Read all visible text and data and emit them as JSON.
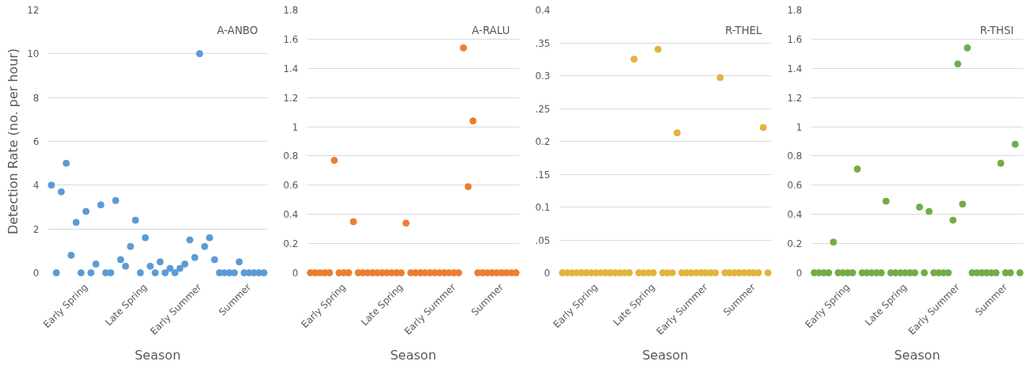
{
  "chart_data": [
    {
      "type": "scatter",
      "xlabel": "Season",
      "ylabel": "Detection Rate (no. per hour)",
      "annotations": [
        "A-ANBO"
      ],
      "marker": "circle",
      "grid": "y",
      "categories": [
        null,
        null,
        null,
        null,
        null,
        null,
        null,
        "Early Spring",
        null,
        null,
        null,
        null,
        null,
        null,
        null,
        null,
        null,
        null,
        null,
        "Late Spring",
        null,
        null,
        null,
        null,
        null,
        null,
        null,
        null,
        null,
        null,
        "Early Summer",
        null,
        null,
        null,
        null,
        null,
        null,
        null,
        null,
        null,
        "Summer",
        null,
        null,
        null
      ],
      "series": [
        {
          "color": "#5b9bd5",
          "values": [
            4.0,
            0,
            3.7,
            5.0,
            0.8,
            2.3,
            0,
            2.8,
            0,
            0.4,
            3.1,
            0,
            0,
            3.3,
            0.6,
            0.3,
            1.2,
            2.4,
            0,
            1.6,
            0.3,
            0,
            0.5,
            0,
            0.2,
            0,
            0.2,
            0.4,
            1.5,
            0.7,
            10,
            1.2,
            1.6,
            0.6,
            0,
            0,
            0,
            0,
            0.5,
            0,
            0,
            0,
            0,
            0
          ]
        }
      ],
      "ylim": [
        0,
        12
      ],
      "yticks": [
        0,
        2,
        4,
        6,
        8,
        10,
        12
      ]
    },
    {
      "type": "scatter",
      "xlabel": "Season",
      "annotations": [
        "A-RALU"
      ],
      "marker": "circle",
      "grid": "y",
      "categories": [
        null,
        null,
        null,
        null,
        null,
        null,
        null,
        "Early Spring",
        null,
        null,
        null,
        null,
        null,
        null,
        null,
        null,
        null,
        null,
        null,
        "Late Spring",
        null,
        null,
        null,
        null,
        null,
        null,
        null,
        null,
        null,
        null,
        "Early Summer",
        null,
        null,
        null,
        null,
        null,
        null,
        null,
        null,
        null,
        "Summer",
        null,
        null,
        null
      ],
      "series": [
        {
          "color": "#ed7d31",
          "values": [
            0,
            0,
            0,
            0,
            0,
            0.77,
            0,
            0,
            0,
            0.35,
            0,
            0,
            0,
            0,
            0,
            0,
            0,
            0,
            0,
            0,
            0.34,
            0,
            0,
            0,
            0,
            0,
            0,
            0,
            0,
            0,
            0,
            0,
            1.54,
            0.59,
            1.04,
            0,
            0,
            0,
            0,
            0,
            0,
            0,
            0,
            0
          ]
        }
      ],
      "ylim": [
        0,
        1.8
      ],
      "yticks": [
        0,
        0.2,
        0.4,
        0.6,
        0.8,
        1,
        1.2,
        1.4,
        1.6,
        1.8
      ]
    },
    {
      "type": "scatter",
      "xlabel": "Season",
      "annotations": [
        "R-THEL"
      ],
      "marker": "circle",
      "grid": "y",
      "categories": [
        null,
        null,
        null,
        null,
        null,
        null,
        null,
        "Early Spring",
        null,
        null,
        null,
        null,
        null,
        null,
        null,
        null,
        null,
        null,
        null,
        "Late Spring",
        null,
        null,
        null,
        null,
        null,
        null,
        null,
        null,
        null,
        null,
        "Early Summer",
        null,
        null,
        null,
        null,
        null,
        null,
        null,
        null,
        null,
        "Summer",
        null,
        null,
        null
      ],
      "series": [
        {
          "color": "#e2b43c",
          "values": [
            0,
            0,
            0,
            0,
            0,
            0,
            0,
            0,
            0,
            0,
            0,
            0,
            0,
            0,
            0,
            0.325,
            0,
            0,
            0,
            0,
            0.34,
            0,
            0,
            0,
            0.213,
            0,
            0,
            0,
            0,
            0,
            0,
            0,
            0,
            0.297,
            0,
            0,
            0,
            0,
            0,
            0,
            0,
            0,
            0.221,
            0
          ]
        }
      ],
      "ylim": [
        0,
        0.4
      ],
      "yticks": [
        0,
        {
          "value": 0.05,
          "label": ".05"
        },
        0.1,
        {
          "value": 0.15,
          "label": ".15"
        },
        0.2,
        {
          "value": 0.25,
          "label": ".25"
        },
        0.3,
        {
          "value": 0.35,
          "label": ".35"
        },
        0.4
      ]
    },
    {
      "type": "scatter",
      "xlabel": "Season",
      "annotations": [
        "R-THSI"
      ],
      "marker": "circle",
      "grid": "y",
      "categories": [
        null,
        null,
        null,
        null,
        null,
        null,
        null,
        "Early Spring",
        null,
        null,
        null,
        null,
        null,
        null,
        null,
        null,
        null,
        null,
        null,
        "Late Spring",
        null,
        null,
        null,
        null,
        null,
        null,
        null,
        null,
        null,
        null,
        "Early Summer",
        null,
        null,
        null,
        null,
        null,
        null,
        null,
        null,
        null,
        "Summer",
        null,
        null,
        null
      ],
      "series": [
        {
          "color": "#70ad47",
          "values": [
            0,
            0,
            0,
            0,
            0.21,
            0,
            0,
            0,
            0,
            0.71,
            0,
            0,
            0,
            0,
            0,
            0.49,
            0,
            0,
            0,
            0,
            0,
            0,
            0.45,
            0,
            0.42,
            0,
            0,
            0,
            0,
            0.36,
            1.43,
            0.47,
            1.54,
            0,
            0,
            0,
            0,
            0,
            0,
            0.75,
            0,
            0,
            0.88,
            0
          ]
        }
      ],
      "ylim": [
        0,
        1.8
      ],
      "yticks": [
        0,
        0.2,
        0.4,
        0.6,
        0.8,
        1,
        1.2,
        1.4,
        1.6,
        1.8
      ]
    }
  ]
}
